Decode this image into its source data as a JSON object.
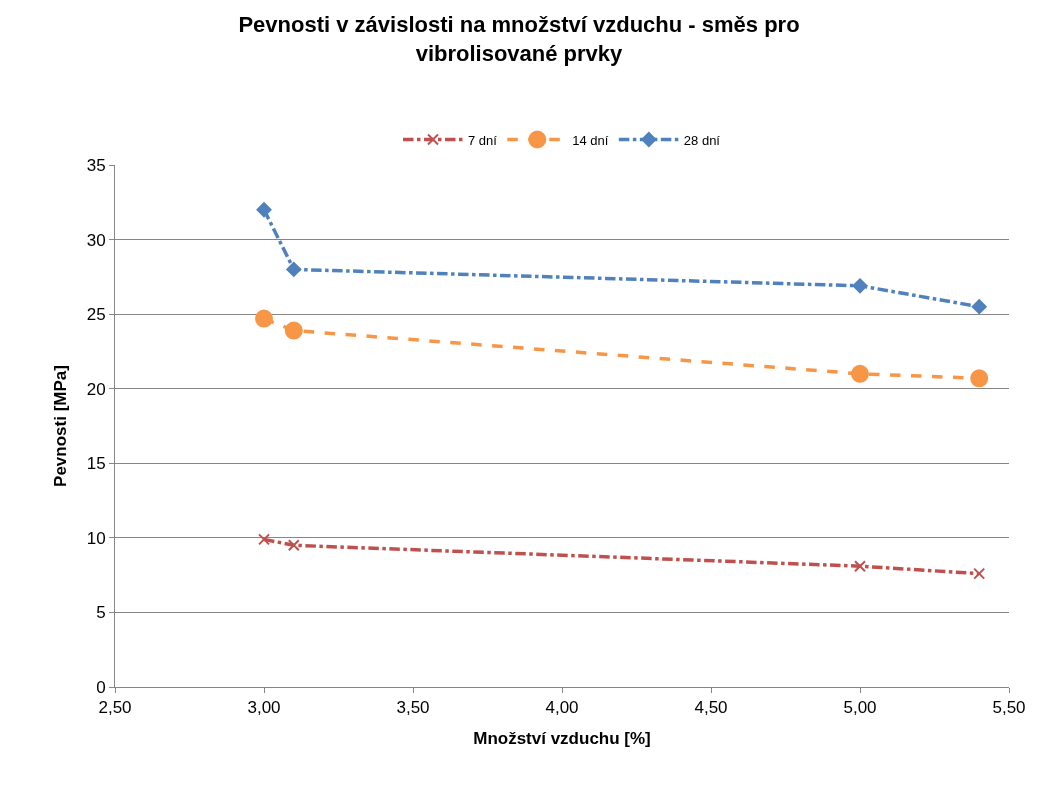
{
  "chart_data": {
    "type": "line",
    "title": "Pevnosti v závislosti na množství vzduchu - směs pro vibrolisované prvky",
    "xlabel": "Množství vzduchu [%]",
    "ylabel": "Pevnosti [MPa]",
    "x": [
      3.0,
      3.1,
      5.0,
      5.4
    ],
    "series": [
      {
        "name": "7 dní",
        "color": "#c0504d",
        "values": [
          9.9,
          9.5,
          8.1,
          7.6
        ],
        "marker": "cross",
        "line_style": "dashdot"
      },
      {
        "name": "14 dní",
        "color": "#f79646",
        "values": [
          24.7,
          23.9,
          21.0,
          20.7
        ],
        "marker": "circle",
        "line_style": "dashed"
      },
      {
        "name": "28 dní",
        "color": "#4f81bd",
        "values": [
          32.0,
          28.0,
          26.9,
          25.5
        ],
        "marker": "diamond",
        "line_style": "dashdot"
      }
    ],
    "xlim": [
      2.5,
      5.5
    ],
    "xticks": [
      {
        "value": 2.5,
        "label": "2,50"
      },
      {
        "value": 3.0,
        "label": "3,00"
      },
      {
        "value": 3.5,
        "label": "3,50"
      },
      {
        "value": 4.0,
        "label": "4,00"
      },
      {
        "value": 4.5,
        "label": "4,50"
      },
      {
        "value": 5.0,
        "label": "5,00"
      },
      {
        "value": 5.5,
        "label": "5,50"
      }
    ],
    "ylim": [
      0,
      35
    ],
    "yticks": [
      0,
      5,
      10,
      15,
      20,
      25,
      30,
      35
    ],
    "grid": "y",
    "legend": "top"
  }
}
